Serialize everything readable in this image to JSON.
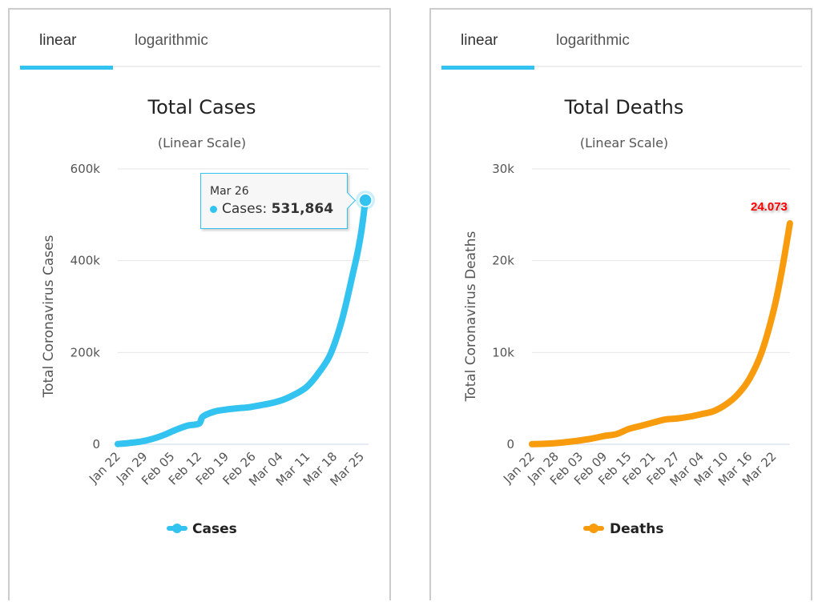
{
  "tabs": [
    {
      "label": "linear",
      "active": true
    },
    {
      "label": "logarithmic",
      "active": false
    }
  ],
  "colors": {
    "tab_accent": "#33c3f0",
    "cases_line": "#33c3f0",
    "deaths_line": "#f89c0e",
    "data_label": "#ff0000"
  },
  "chart_data": [
    {
      "type": "line",
      "title": "Total Cases",
      "subtitle": "(Linear Scale)",
      "xlabel": "",
      "ylabel": "Total Coronavirus Cases",
      "ylim": [
        0,
        600000
      ],
      "yticks": [
        0,
        200000,
        400000,
        600000
      ],
      "ytick_labels": [
        "0",
        "200k",
        "400k",
        "600k"
      ],
      "xtick_labels": [
        "Jan 22",
        "Jan 29",
        "Feb 05",
        "Feb 12",
        "Feb 19",
        "Feb 26",
        "Mar 04",
        "Mar 11",
        "Mar 18",
        "Mar 25"
      ],
      "grid": true,
      "legend": {
        "position": "bottom",
        "entries": [
          "Cases"
        ]
      },
      "series": [
        {
          "name": "Cases",
          "x": [
            "Jan 22",
            "Jan 25",
            "Jan 28",
            "Jan 31",
            "Feb 03",
            "Feb 06",
            "Feb 09",
            "Feb 12",
            "Feb 13",
            "Feb 16",
            "Feb 19",
            "Feb 22",
            "Feb 25",
            "Feb 28",
            "Mar 02",
            "Mar 05",
            "Mar 08",
            "Mar 11",
            "Mar 14",
            "Mar 17",
            "Mar 20",
            "Mar 23",
            "Mar 24",
            "Mar 25",
            "Mar 26"
          ],
          "values": [
            580,
            2900,
            6000,
            11900,
            20600,
            31500,
            40500,
            45200,
            60400,
            71300,
            75700,
            78600,
            80800,
            85400,
            90300,
            97900,
            109800,
            126300,
            156600,
            197200,
            273000,
            381000,
            419000,
            467000,
            531864
          ]
        }
      ],
      "tooltip": {
        "date": "Mar 26",
        "series": "Cases",
        "label": "Cases:",
        "value": "531,864"
      }
    },
    {
      "type": "line",
      "title": "Total Deaths",
      "subtitle": "(Linear Scale)",
      "xlabel": "",
      "ylabel": "Total Coronavirus Deaths",
      "ylim": [
        0,
        30000
      ],
      "yticks": [
        0,
        10000,
        20000,
        30000
      ],
      "ytick_labels": [
        "0",
        "10k",
        "20k",
        "30k"
      ],
      "xtick_labels": [
        "Jan 22",
        "Jan 28",
        "Feb 03",
        "Feb 09",
        "Feb 15",
        "Feb 21",
        "Feb 27",
        "Mar 04",
        "Mar 10",
        "Mar 16",
        "Mar 22"
      ],
      "grid": true,
      "legend": {
        "position": "bottom",
        "entries": [
          "Deaths"
        ]
      },
      "series": [
        {
          "name": "Deaths",
          "x": [
            "Jan 22",
            "Jan 25",
            "Jan 28",
            "Jan 31",
            "Feb 03",
            "Feb 06",
            "Feb 09",
            "Feb 12",
            "Feb 15",
            "Feb 18",
            "Feb 21",
            "Feb 24",
            "Feb 27",
            "Mar 01",
            "Mar 04",
            "Mar 07",
            "Mar 10",
            "Mar 13",
            "Mar 16",
            "Mar 19",
            "Mar 22",
            "Mar 24",
            "Mar 26"
          ],
          "values": [
            17,
            56,
            132,
            259,
            427,
            638,
            910,
            1118,
            1666,
            2009,
            2360,
            2700,
            2810,
            3000,
            3280,
            3600,
            4300,
            5400,
            7160,
            10040,
            14640,
            18900,
            24073
          ]
        }
      ],
      "data_label": {
        "date": "Mar 26",
        "value": "24.073"
      }
    }
  ]
}
